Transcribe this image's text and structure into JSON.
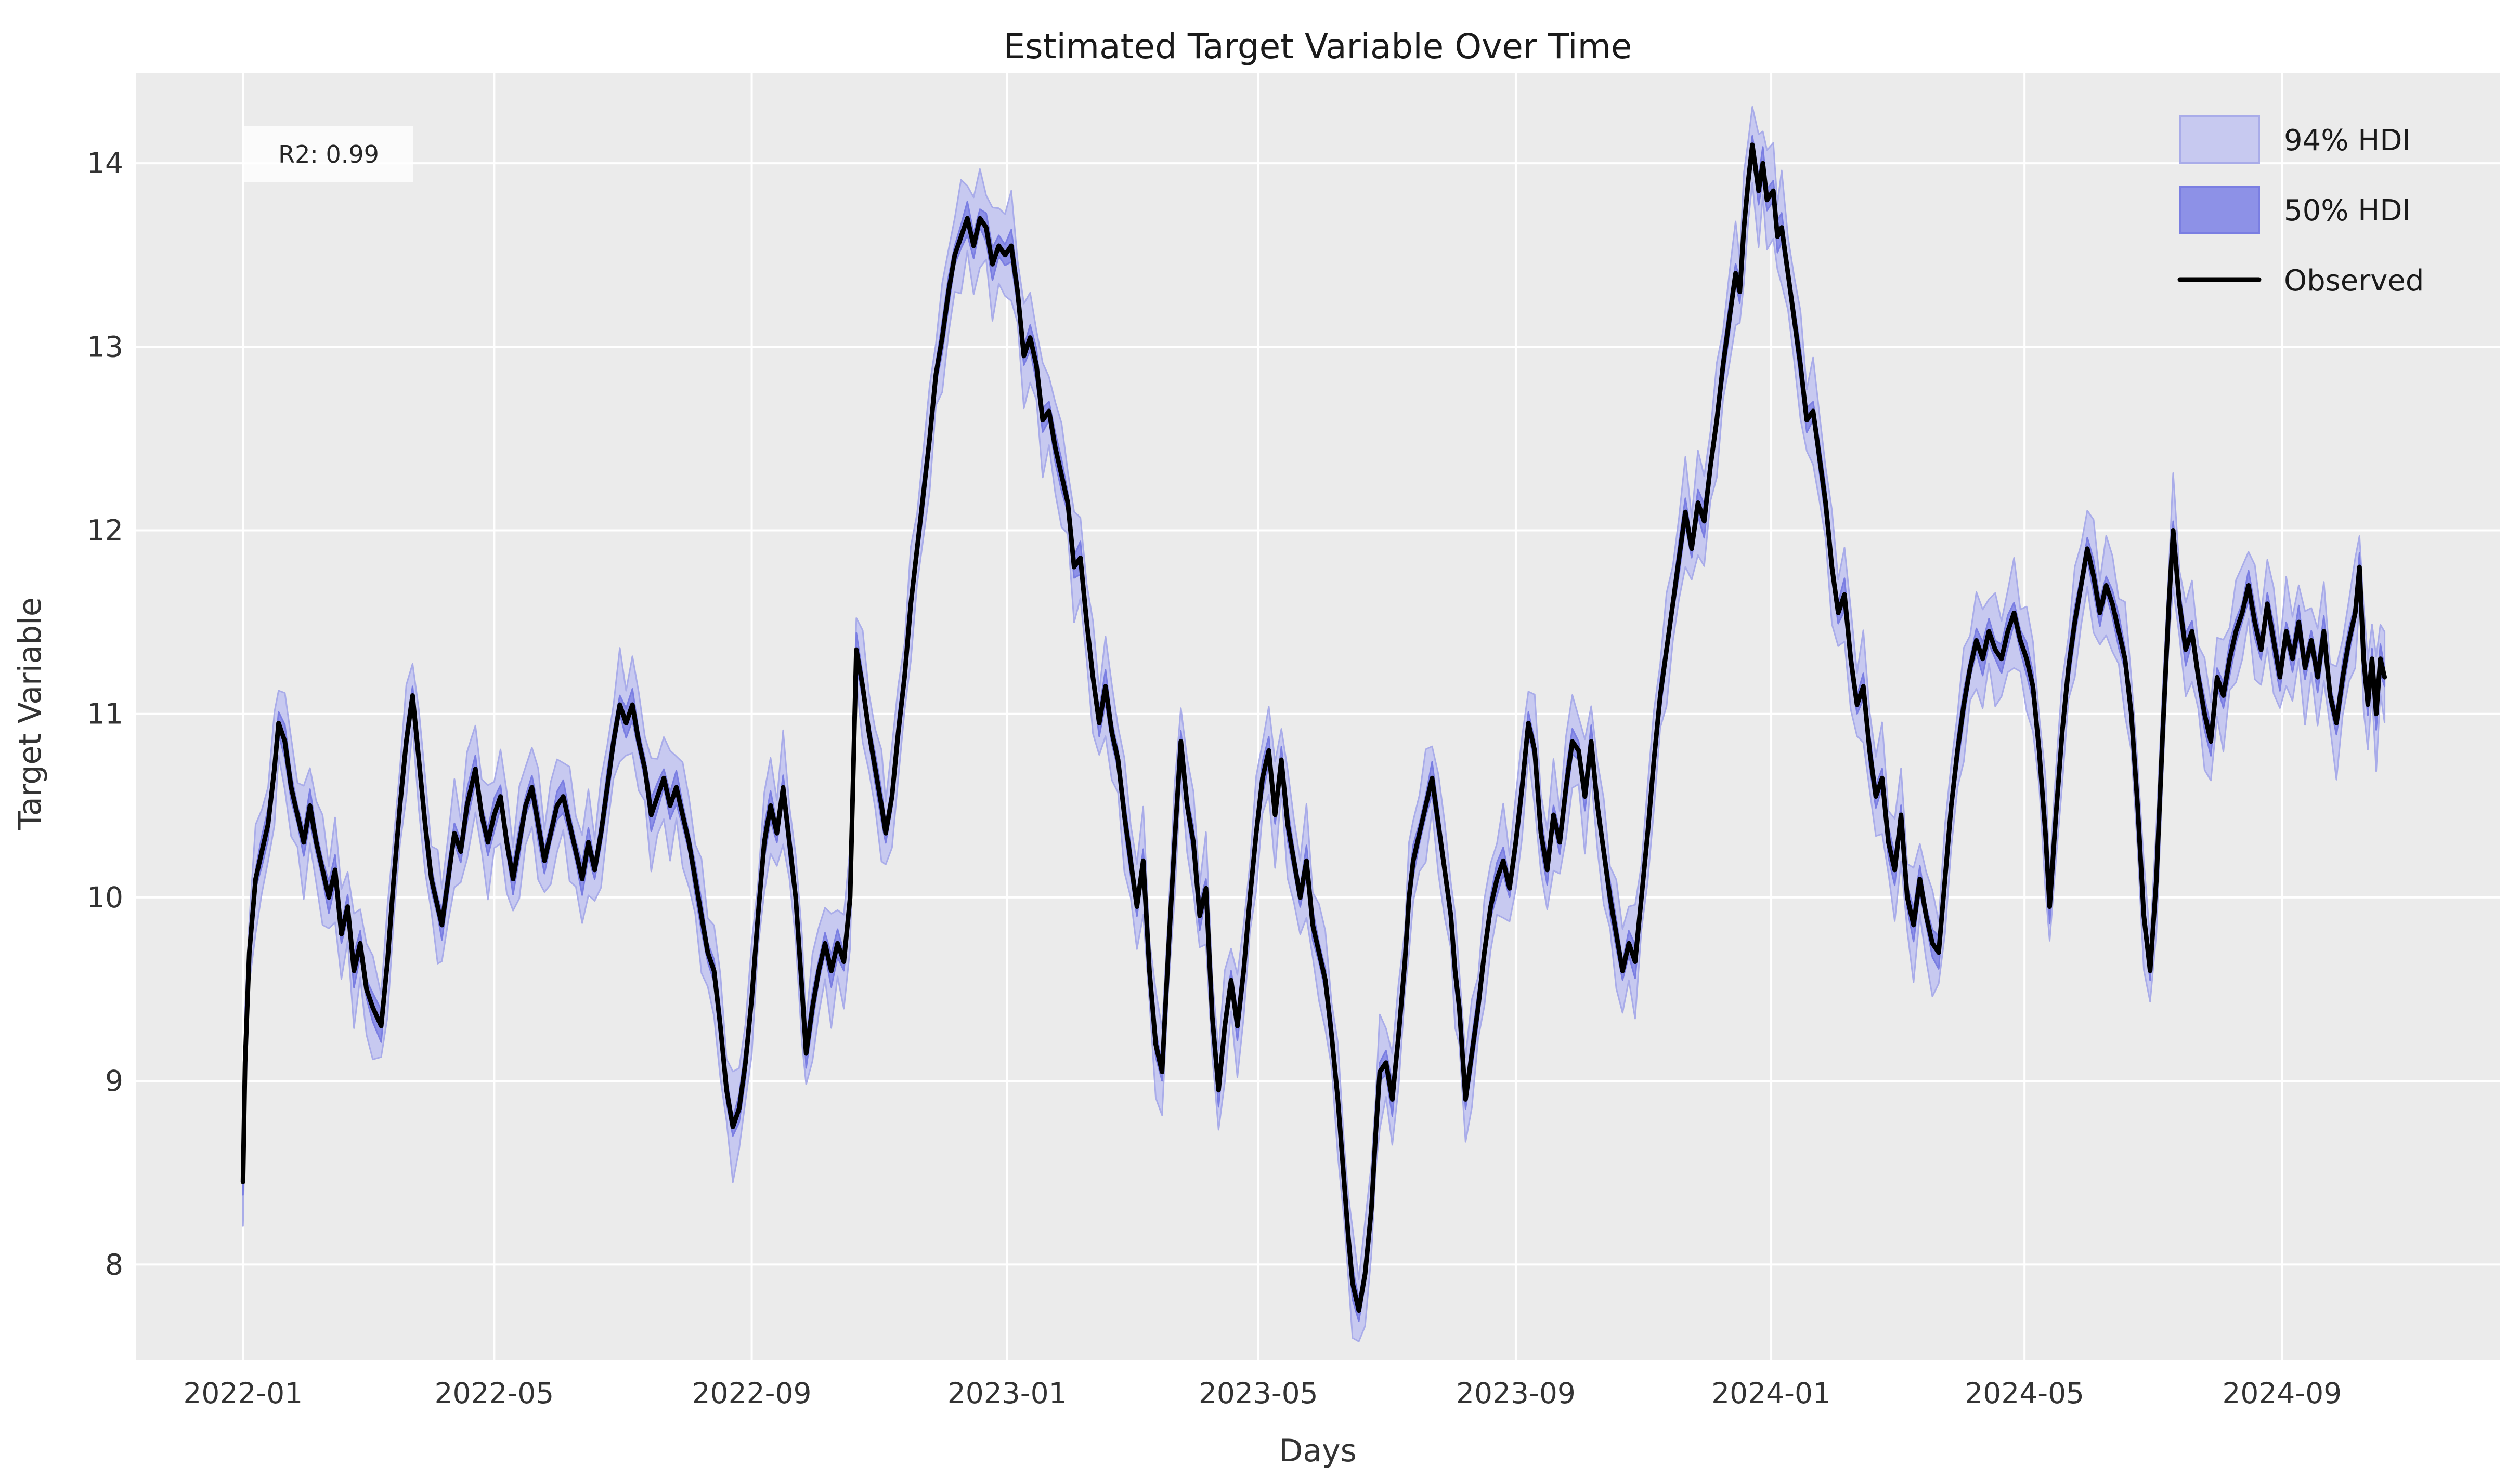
{
  "figure": {
    "title": "Estimated Target Variable Over Time",
    "r2_annotation": "R2: 0.99"
  },
  "chart_data": {
    "type": "line",
    "title": "Estimated Target Variable Over Time",
    "xlabel": "Days",
    "ylabel": "Target Variable",
    "x_tick_labels": [
      "2022-01",
      "2022-05",
      "2022-09",
      "2023-01",
      "2023-05",
      "2023-09",
      "2024-01",
      "2024-05",
      "2024-09"
    ],
    "x_tick_dates": [
      "2022-01-01",
      "2022-05-01",
      "2022-09-01",
      "2023-01-01",
      "2023-05-01",
      "2023-09-01",
      "2024-01-01",
      "2024-05-01",
      "2024-09-01"
    ],
    "y_ticks": [
      8,
      9,
      10,
      11,
      12,
      13,
      14
    ],
    "ylim": [
      7.48,
      14.49
    ],
    "xlim": [
      "2021-11-11",
      "2024-12-14"
    ],
    "grid": true,
    "background_color": "#ebebeb",
    "gridline_color": "#ffffff",
    "legend_position": "upper right",
    "legend_frame": false,
    "annotation": {
      "text": "R2: 0.99",
      "x_date": "2022-01-01",
      "y_value": 13.9
    },
    "hdi94": {
      "label": "94% HDI",
      "color": "#c7c9f0",
      "edge_color": "#a9ace9",
      "halfwidth": 0.17
    },
    "hdi50": {
      "label": "50% HDI",
      "color": "#8d91e7",
      "edge_color": "#7a7ee2",
      "halfwidth": 0.07
    },
    "observed": {
      "label": "Observed",
      "color": "#000000"
    },
    "series_name": "Observed",
    "series": [
      [
        "2022-01-01",
        8.45
      ],
      [
        "2022-01-02",
        9.1
      ],
      [
        "2022-01-04",
        9.7
      ],
      [
        "2022-01-07",
        10.1
      ],
      [
        "2022-01-10",
        10.25
      ],
      [
        "2022-01-13",
        10.4
      ],
      [
        "2022-01-16",
        10.7
      ],
      [
        "2022-01-18",
        10.95
      ],
      [
        "2022-01-21",
        10.85
      ],
      [
        "2022-01-24",
        10.6
      ],
      [
        "2022-01-27",
        10.45
      ],
      [
        "2022-01-30",
        10.3
      ],
      [
        "2022-02-02",
        10.5
      ],
      [
        "2022-02-05",
        10.3
      ],
      [
        "2022-02-08",
        10.15
      ],
      [
        "2022-02-11",
        10.0
      ],
      [
        "2022-02-14",
        10.15
      ],
      [
        "2022-02-17",
        9.8
      ],
      [
        "2022-02-20",
        9.95
      ],
      [
        "2022-02-23",
        9.6
      ],
      [
        "2022-02-26",
        9.75
      ],
      [
        "2022-03-01",
        9.5
      ],
      [
        "2022-03-04",
        9.4
      ],
      [
        "2022-03-08",
        9.3
      ],
      [
        "2022-03-11",
        9.65
      ],
      [
        "2022-03-14",
        10.1
      ],
      [
        "2022-03-17",
        10.5
      ],
      [
        "2022-03-20",
        10.85
      ],
      [
        "2022-03-23",
        11.1
      ],
      [
        "2022-03-26",
        10.75
      ],
      [
        "2022-03-29",
        10.4
      ],
      [
        "2022-04-01",
        10.1
      ],
      [
        "2022-04-04",
        9.95
      ],
      [
        "2022-04-06",
        9.85
      ],
      [
        "2022-04-09",
        10.1
      ],
      [
        "2022-04-12",
        10.35
      ],
      [
        "2022-04-15",
        10.25
      ],
      [
        "2022-04-18",
        10.5
      ],
      [
        "2022-04-22",
        10.7
      ],
      [
        "2022-04-25",
        10.45
      ],
      [
        "2022-04-28",
        10.3
      ],
      [
        "2022-05-01",
        10.45
      ],
      [
        "2022-05-04",
        10.55
      ],
      [
        "2022-05-07",
        10.3
      ],
      [
        "2022-05-10",
        10.1
      ],
      [
        "2022-05-13",
        10.3
      ],
      [
        "2022-05-16",
        10.5
      ],
      [
        "2022-05-19",
        10.6
      ],
      [
        "2022-05-22",
        10.4
      ],
      [
        "2022-05-25",
        10.2
      ],
      [
        "2022-05-28",
        10.35
      ],
      [
        "2022-05-31",
        10.5
      ],
      [
        "2022-06-03",
        10.55
      ],
      [
        "2022-06-06",
        10.4
      ],
      [
        "2022-06-09",
        10.25
      ],
      [
        "2022-06-12",
        10.1
      ],
      [
        "2022-06-15",
        10.3
      ],
      [
        "2022-06-18",
        10.15
      ],
      [
        "2022-06-21",
        10.35
      ],
      [
        "2022-06-24",
        10.6
      ],
      [
        "2022-06-27",
        10.85
      ],
      [
        "2022-06-30",
        11.05
      ],
      [
        "2022-07-03",
        10.95
      ],
      [
        "2022-07-06",
        11.05
      ],
      [
        "2022-07-09",
        10.85
      ],
      [
        "2022-07-12",
        10.7
      ],
      [
        "2022-07-15",
        10.45
      ],
      [
        "2022-07-18",
        10.55
      ],
      [
        "2022-07-21",
        10.65
      ],
      [
        "2022-07-24",
        10.5
      ],
      [
        "2022-07-27",
        10.6
      ],
      [
        "2022-07-30",
        10.45
      ],
      [
        "2022-08-02",
        10.3
      ],
      [
        "2022-08-05",
        10.1
      ],
      [
        "2022-08-08",
        9.9
      ],
      [
        "2022-08-11",
        9.7
      ],
      [
        "2022-08-14",
        9.6
      ],
      [
        "2022-08-17",
        9.3
      ],
      [
        "2022-08-20",
        8.95
      ],
      [
        "2022-08-23",
        8.75
      ],
      [
        "2022-08-26",
        8.85
      ],
      [
        "2022-08-29",
        9.1
      ],
      [
        "2022-09-01",
        9.45
      ],
      [
        "2022-09-04",
        9.9
      ],
      [
        "2022-09-07",
        10.3
      ],
      [
        "2022-09-10",
        10.5
      ],
      [
        "2022-09-13",
        10.35
      ],
      [
        "2022-09-16",
        10.6
      ],
      [
        "2022-09-19",
        10.3
      ],
      [
        "2022-09-22",
        10.0
      ],
      [
        "2022-09-25",
        9.5
      ],
      [
        "2022-09-27",
        9.15
      ],
      [
        "2022-09-30",
        9.4
      ],
      [
        "2022-10-03",
        9.6
      ],
      [
        "2022-10-06",
        9.75
      ],
      [
        "2022-10-09",
        9.6
      ],
      [
        "2022-10-12",
        9.75
      ],
      [
        "2022-10-15",
        9.65
      ],
      [
        "2022-10-18",
        10.0
      ],
      [
        "2022-10-21",
        11.35
      ],
      [
        "2022-10-24",
        11.15
      ],
      [
        "2022-10-27",
        10.9
      ],
      [
        "2022-10-30",
        10.7
      ],
      [
        "2022-11-02",
        10.5
      ],
      [
        "2022-11-04",
        10.35
      ],
      [
        "2022-11-07",
        10.55
      ],
      [
        "2022-11-10",
        10.9
      ],
      [
        "2022-11-13",
        11.2
      ],
      [
        "2022-11-16",
        11.6
      ],
      [
        "2022-11-19",
        11.9
      ],
      [
        "2022-11-22",
        12.2
      ],
      [
        "2022-11-25",
        12.5
      ],
      [
        "2022-11-28",
        12.85
      ],
      [
        "2022-12-01",
        13.05
      ],
      [
        "2022-12-04",
        13.3
      ],
      [
        "2022-12-07",
        13.5
      ],
      [
        "2022-12-10",
        13.6
      ],
      [
        "2022-12-13",
        13.7
      ],
      [
        "2022-12-16",
        13.55
      ],
      [
        "2022-12-19",
        13.7
      ],
      [
        "2022-12-22",
        13.65
      ],
      [
        "2022-12-25",
        13.45
      ],
      [
        "2022-12-28",
        13.55
      ],
      [
        "2022-12-31",
        13.5
      ],
      [
        "2023-01-03",
        13.55
      ],
      [
        "2023-01-06",
        13.3
      ],
      [
        "2023-01-09",
        12.95
      ],
      [
        "2023-01-12",
        13.05
      ],
      [
        "2023-01-15",
        12.9
      ],
      [
        "2023-01-18",
        12.6
      ],
      [
        "2023-01-21",
        12.65
      ],
      [
        "2023-01-24",
        12.45
      ],
      [
        "2023-01-27",
        12.3
      ],
      [
        "2023-01-30",
        12.15
      ],
      [
        "2023-02-02",
        11.8
      ],
      [
        "2023-02-05",
        11.85
      ],
      [
        "2023-02-08",
        11.5
      ],
      [
        "2023-02-11",
        11.2
      ],
      [
        "2023-02-14",
        10.95
      ],
      [
        "2023-02-17",
        11.15
      ],
      [
        "2023-02-20",
        10.9
      ],
      [
        "2023-02-23",
        10.75
      ],
      [
        "2023-02-26",
        10.45
      ],
      [
        "2023-03-01",
        10.2
      ],
      [
        "2023-03-04",
        9.95
      ],
      [
        "2023-03-07",
        10.2
      ],
      [
        "2023-03-10",
        9.6
      ],
      [
        "2023-03-13",
        9.2
      ],
      [
        "2023-03-16",
        9.05
      ],
      [
        "2023-03-19",
        9.7
      ],
      [
        "2023-03-22",
        10.3
      ],
      [
        "2023-03-25",
        10.85
      ],
      [
        "2023-03-28",
        10.5
      ],
      [
        "2023-03-31",
        10.3
      ],
      [
        "2023-04-03",
        9.9
      ],
      [
        "2023-04-06",
        10.05
      ],
      [
        "2023-04-09",
        9.35
      ],
      [
        "2023-04-12",
        8.95
      ],
      [
        "2023-04-15",
        9.3
      ],
      [
        "2023-04-18",
        9.55
      ],
      [
        "2023-04-21",
        9.3
      ],
      [
        "2023-04-24",
        9.6
      ],
      [
        "2023-04-27",
        10.0
      ],
      [
        "2023-04-30",
        10.35
      ],
      [
        "2023-05-03",
        10.65
      ],
      [
        "2023-05-06",
        10.8
      ],
      [
        "2023-05-09",
        10.45
      ],
      [
        "2023-05-12",
        10.75
      ],
      [
        "2023-05-15",
        10.4
      ],
      [
        "2023-05-18",
        10.2
      ],
      [
        "2023-05-21",
        10.0
      ],
      [
        "2023-05-24",
        10.2
      ],
      [
        "2023-05-27",
        9.85
      ],
      [
        "2023-05-30",
        9.7
      ],
      [
        "2023-06-02",
        9.55
      ],
      [
        "2023-06-05",
        9.25
      ],
      [
        "2023-06-08",
        8.9
      ],
      [
        "2023-06-11",
        8.45
      ],
      [
        "2023-06-13",
        8.15
      ],
      [
        "2023-06-15",
        7.9
      ],
      [
        "2023-06-18",
        7.75
      ],
      [
        "2023-06-21",
        7.95
      ],
      [
        "2023-06-24",
        8.3
      ],
      [
        "2023-06-26",
        8.7
      ],
      [
        "2023-06-28",
        9.05
      ],
      [
        "2023-07-01",
        9.1
      ],
      [
        "2023-07-04",
        8.9
      ],
      [
        "2023-07-07",
        9.25
      ],
      [
        "2023-07-10",
        9.65
      ],
      [
        "2023-07-12",
        10.0
      ],
      [
        "2023-07-14",
        10.2
      ],
      [
        "2023-07-17",
        10.35
      ],
      [
        "2023-07-20",
        10.5
      ],
      [
        "2023-07-23",
        10.65
      ],
      [
        "2023-07-26",
        10.4
      ],
      [
        "2023-07-29",
        10.15
      ],
      [
        "2023-08-01",
        9.9
      ],
      [
        "2023-08-03",
        9.6
      ],
      [
        "2023-08-05",
        9.4
      ],
      [
        "2023-08-08",
        8.9
      ],
      [
        "2023-08-11",
        9.15
      ],
      [
        "2023-08-14",
        9.4
      ],
      [
        "2023-08-17",
        9.7
      ],
      [
        "2023-08-20",
        9.95
      ],
      [
        "2023-08-23",
        10.1
      ],
      [
        "2023-08-26",
        10.2
      ],
      [
        "2023-08-29",
        10.05
      ],
      [
        "2023-09-01",
        10.3
      ],
      [
        "2023-09-04",
        10.6
      ],
      [
        "2023-09-07",
        10.95
      ],
      [
        "2023-09-10",
        10.8
      ],
      [
        "2023-09-13",
        10.35
      ],
      [
        "2023-09-16",
        10.15
      ],
      [
        "2023-09-19",
        10.45
      ],
      [
        "2023-09-22",
        10.3
      ],
      [
        "2023-09-25",
        10.6
      ],
      [
        "2023-09-28",
        10.85
      ],
      [
        "2023-10-01",
        10.8
      ],
      [
        "2023-10-04",
        10.55
      ],
      [
        "2023-10-07",
        10.85
      ],
      [
        "2023-10-10",
        10.5
      ],
      [
        "2023-10-13",
        10.25
      ],
      [
        "2023-10-16",
        10.0
      ],
      [
        "2023-10-19",
        9.8
      ],
      [
        "2023-10-22",
        9.6
      ],
      [
        "2023-10-25",
        9.75
      ],
      [
        "2023-10-28",
        9.65
      ],
      [
        "2023-10-31",
        10.0
      ],
      [
        "2023-11-03",
        10.35
      ],
      [
        "2023-11-06",
        10.75
      ],
      [
        "2023-11-09",
        11.1
      ],
      [
        "2023-11-12",
        11.35
      ],
      [
        "2023-11-15",
        11.6
      ],
      [
        "2023-11-18",
        11.85
      ],
      [
        "2023-11-21",
        12.1
      ],
      [
        "2023-11-24",
        11.9
      ],
      [
        "2023-11-27",
        12.15
      ],
      [
        "2023-11-30",
        12.05
      ],
      [
        "2023-12-03",
        12.35
      ],
      [
        "2023-12-06",
        12.6
      ],
      [
        "2023-12-09",
        12.9
      ],
      [
        "2023-12-12",
        13.15
      ],
      [
        "2023-12-15",
        13.4
      ],
      [
        "2023-12-17",
        13.3
      ],
      [
        "2023-12-19",
        13.65
      ],
      [
        "2023-12-21",
        13.9
      ],
      [
        "2023-12-23",
        14.1
      ],
      [
        "2023-12-26",
        13.85
      ],
      [
        "2023-12-28",
        14.0
      ],
      [
        "2023-12-30",
        13.8
      ],
      [
        "2024-01-02",
        13.85
      ],
      [
        "2024-01-04",
        13.6
      ],
      [
        "2024-01-06",
        13.65
      ],
      [
        "2024-01-09",
        13.4
      ],
      [
        "2024-01-12",
        13.15
      ],
      [
        "2024-01-15",
        12.9
      ],
      [
        "2024-01-18",
        12.6
      ],
      [
        "2024-01-21",
        12.65
      ],
      [
        "2024-01-24",
        12.4
      ],
      [
        "2024-01-27",
        12.15
      ],
      [
        "2024-01-30",
        11.8
      ],
      [
        "2024-02-02",
        11.55
      ],
      [
        "2024-02-05",
        11.65
      ],
      [
        "2024-02-08",
        11.3
      ],
      [
        "2024-02-11",
        11.05
      ],
      [
        "2024-02-14",
        11.15
      ],
      [
        "2024-02-17",
        10.8
      ],
      [
        "2024-02-20",
        10.55
      ],
      [
        "2024-02-23",
        10.65
      ],
      [
        "2024-02-26",
        10.3
      ],
      [
        "2024-02-29",
        10.15
      ],
      [
        "2024-03-03",
        10.45
      ],
      [
        "2024-03-06",
        10.0
      ],
      [
        "2024-03-09",
        9.85
      ],
      [
        "2024-03-12",
        10.1
      ],
      [
        "2024-03-15",
        9.9
      ],
      [
        "2024-03-18",
        9.75
      ],
      [
        "2024-03-21",
        9.7
      ],
      [
        "2024-03-24",
        10.1
      ],
      [
        "2024-03-27",
        10.5
      ],
      [
        "2024-03-30",
        10.8
      ],
      [
        "2024-04-02",
        11.05
      ],
      [
        "2024-04-05",
        11.25
      ],
      [
        "2024-04-08",
        11.4
      ],
      [
        "2024-04-11",
        11.3
      ],
      [
        "2024-04-14",
        11.45
      ],
      [
        "2024-04-17",
        11.35
      ],
      [
        "2024-04-20",
        11.3
      ],
      [
        "2024-04-23",
        11.45
      ],
      [
        "2024-04-26",
        11.55
      ],
      [
        "2024-04-29",
        11.4
      ],
      [
        "2024-05-02",
        11.3
      ],
      [
        "2024-05-05",
        11.15
      ],
      [
        "2024-05-08",
        10.8
      ],
      [
        "2024-05-11",
        10.35
      ],
      [
        "2024-05-13",
        9.95
      ],
      [
        "2024-05-16",
        10.45
      ],
      [
        "2024-05-19",
        10.9
      ],
      [
        "2024-05-22",
        11.25
      ],
      [
        "2024-05-25",
        11.5
      ],
      [
        "2024-05-28",
        11.7
      ],
      [
        "2024-05-31",
        11.9
      ],
      [
        "2024-06-03",
        11.75
      ],
      [
        "2024-06-06",
        11.55
      ],
      [
        "2024-06-09",
        11.7
      ],
      [
        "2024-06-12",
        11.6
      ],
      [
        "2024-06-15",
        11.45
      ],
      [
        "2024-06-18",
        11.3
      ],
      [
        "2024-06-21",
        11.0
      ],
      [
        "2024-06-24",
        10.5
      ],
      [
        "2024-06-27",
        9.9
      ],
      [
        "2024-06-30",
        9.6
      ],
      [
        "2024-07-03",
        10.1
      ],
      [
        "2024-07-06",
        10.9
      ],
      [
        "2024-07-09",
        11.6
      ],
      [
        "2024-07-11",
        12.0
      ],
      [
        "2024-07-14",
        11.6
      ],
      [
        "2024-07-17",
        11.35
      ],
      [
        "2024-07-20",
        11.45
      ],
      [
        "2024-07-23",
        11.2
      ],
      [
        "2024-07-26",
        11.0
      ],
      [
        "2024-07-29",
        10.85
      ],
      [
        "2024-08-01",
        11.2
      ],
      [
        "2024-08-04",
        11.1
      ],
      [
        "2024-08-07",
        11.3
      ],
      [
        "2024-08-10",
        11.45
      ],
      [
        "2024-08-13",
        11.55
      ],
      [
        "2024-08-16",
        11.7
      ],
      [
        "2024-08-19",
        11.5
      ],
      [
        "2024-08-22",
        11.35
      ],
      [
        "2024-08-25",
        11.6
      ],
      [
        "2024-08-28",
        11.4
      ],
      [
        "2024-08-31",
        11.2
      ],
      [
        "2024-09-03",
        11.45
      ],
      [
        "2024-09-06",
        11.3
      ],
      [
        "2024-09-09",
        11.5
      ],
      [
        "2024-09-12",
        11.25
      ],
      [
        "2024-09-15",
        11.4
      ],
      [
        "2024-09-18",
        11.2
      ],
      [
        "2024-09-21",
        11.45
      ],
      [
        "2024-09-24",
        11.1
      ],
      [
        "2024-09-27",
        10.95
      ],
      [
        "2024-09-30",
        11.2
      ],
      [
        "2024-10-03",
        11.4
      ],
      [
        "2024-10-06",
        11.55
      ],
      [
        "2024-10-08",
        11.8
      ],
      [
        "2024-10-10",
        11.3
      ],
      [
        "2024-10-12",
        11.05
      ],
      [
        "2024-10-14",
        11.3
      ],
      [
        "2024-10-16",
        11.0
      ],
      [
        "2024-10-18",
        11.3
      ],
      [
        "2024-10-20",
        11.2
      ]
    ]
  }
}
